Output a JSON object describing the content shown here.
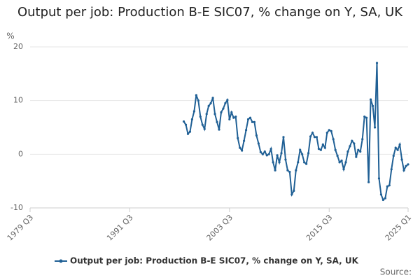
{
  "chart_data": {
    "type": "line",
    "title": "Output per job: Production B-E SIC07, % change on Y, SA, UK",
    "y_label": "%",
    "source": "Source:",
    "categories": [
      "1979 Q3",
      null,
      null,
      null,
      null,
      null,
      null,
      null,
      null,
      null,
      null,
      null,
      null,
      null,
      null,
      null,
      null,
      null,
      null,
      null,
      null,
      null,
      null,
      null,
      null,
      null,
      null,
      null,
      null,
      null,
      null,
      null,
      null,
      null,
      null,
      null,
      null,
      null,
      null,
      null,
      null,
      null,
      null,
      null,
      null,
      null,
      null,
      null,
      "1991 Q3",
      null,
      null,
      null,
      null,
      null,
      null,
      null,
      null,
      null,
      null,
      null,
      null,
      null,
      null,
      null,
      null,
      null,
      null,
      null,
      null,
      null,
      null,
      null,
      null,
      null,
      null,
      null,
      null,
      null,
      null,
      null,
      null,
      null,
      null,
      null,
      null,
      null,
      null,
      null,
      null,
      null,
      null,
      null,
      null,
      null,
      null,
      null,
      "2003 Q3",
      null,
      null,
      null,
      null,
      null,
      null,
      null,
      null,
      null,
      null,
      null,
      null,
      null,
      null,
      null,
      null,
      null,
      null,
      null,
      null,
      null,
      null,
      null,
      null,
      null,
      null,
      null,
      null,
      null,
      null,
      null,
      null,
      null,
      null,
      null,
      null,
      null,
      null,
      null,
      null,
      null,
      null,
      null,
      null,
      null,
      null,
      null,
      "2015 Q3",
      null,
      null,
      null,
      null,
      null,
      null,
      null,
      null,
      null,
      null,
      null,
      null,
      null,
      null,
      null,
      null,
      null,
      null,
      null,
      null,
      null,
      null,
      null,
      null,
      null,
      null,
      null,
      null,
      null,
      null,
      null,
      null,
      null,
      null,
      null,
      null,
      null,
      "2025 Q1"
    ],
    "series": [
      {
        "name": "Output per job: Production B-E SIC07, % change on Y, SA, UK",
        "color": "#206095",
        "values": [
          null,
          null,
          null,
          null,
          null,
          null,
          null,
          null,
          null,
          null,
          null,
          null,
          null,
          null,
          null,
          null,
          null,
          null,
          null,
          null,
          null,
          null,
          null,
          null,
          null,
          null,
          null,
          null,
          null,
          null,
          null,
          null,
          null,
          null,
          null,
          null,
          null,
          null,
          null,
          null,
          null,
          null,
          null,
          null,
          null,
          null,
          null,
          null,
          null,
          null,
          null,
          null,
          null,
          null,
          null,
          null,
          null,
          null,
          null,
          null,
          null,
          null,
          null,
          null,
          null,
          null,
          null,
          null,
          null,
          null,
          null,
          null,
          null,
          null,
          6.1,
          5.5,
          3.8,
          4.2,
          6.5,
          8.0,
          11.0,
          10.0,
          7.0,
          5.5,
          4.7,
          7.5,
          9.0,
          9.5,
          10.5,
          7.5,
          6.0,
          4.6,
          7.8,
          8.5,
          9.5,
          10.1,
          6.5,
          7.8,
          6.8,
          7.0,
          3.0,
          1.2,
          0.7,
          2.5,
          4.5,
          6.5,
          6.8,
          6.0,
          6.0,
          3.5,
          2.0,
          0.4,
          0.0,
          0.5,
          -0.2,
          0.0,
          1.0,
          -1.5,
          -3.0,
          -0.2,
          -1.5,
          0.2,
          3.2,
          -1.0,
          -3.0,
          -3.3,
          -7.5,
          -6.8,
          -3.0,
          -1.5,
          0.8,
          0.0,
          -1.5,
          -1.8,
          0.2,
          3.3,
          4.0,
          3.2,
          3.2,
          1.0,
          0.8,
          1.8,
          1.2,
          4.0,
          4.5,
          4.3,
          2.8,
          0.8,
          -0.3,
          -1.5,
          -1.2,
          -2.8,
          -1.5,
          0.5,
          1.5,
          2.5,
          2.0,
          -0.5,
          0.8,
          0.5,
          2.8,
          7.0,
          6.8,
          -5.2,
          10.2,
          9.0,
          5.0,
          17.0,
          -4.5,
          -7.5,
          -8.5,
          -8.2,
          -6.0,
          -5.8,
          -2.8,
          -0.3,
          1.2,
          0.8,
          1.8,
          -1.0,
          -3.0,
          -2.2,
          -1.9
        ]
      }
    ],
    "ylim": [
      -10,
      20
    ],
    "yticks": [
      -10,
      0,
      10,
      20
    ],
    "grid": true
  }
}
